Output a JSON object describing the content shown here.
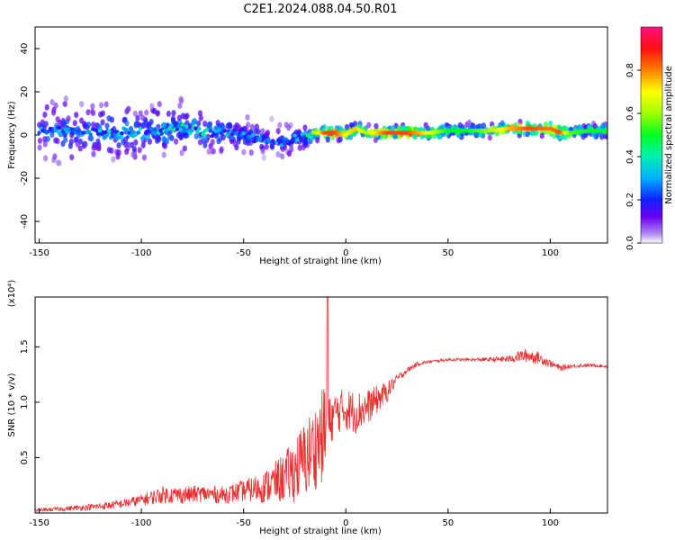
{
  "figure": {
    "title": "C2E1.2024.088.04.50.R01"
  },
  "colors": {
    "snr_line": "#e83030",
    "spectral_low": "#3c00e8",
    "spectral_mid": "#00e0e0",
    "spectral_peak": "#e02020",
    "axis": "#000000"
  },
  "chart_data": [
    {
      "type": "heatmap",
      "xlabel": "Height of straight line (km)",
      "ylabel": "Frequency (Hz)",
      "xlim": [
        -152,
        128
      ],
      "ylim": [
        -50,
        50
      ],
      "xticks": [
        -150,
        -100,
        -50,
        0,
        50,
        100
      ],
      "yticks": [
        -40,
        -20,
        0,
        20,
        40
      ],
      "colorbar": {
        "label": "Normalized spectral amplitude",
        "range": [
          0.0,
          1.0
        ],
        "ticks": [
          "0.0",
          "0.2",
          "0.4",
          "0.6",
          "0.8"
        ],
        "colormap": "rainbow (white/purple → blue → cyan → green → yellow → red → magenta)"
      },
      "ridge": {
        "x": [
          -150,
          -140,
          -130,
          -120,
          -110,
          -100,
          -90,
          -80,
          -70,
          -60,
          -50,
          -40,
          -30,
          -20,
          -15,
          -10,
          -5,
          0,
          5,
          10,
          20,
          30,
          40,
          50,
          60,
          70,
          80,
          90,
          100,
          105,
          110,
          120,
          128
        ],
        "peak_frequency_hz": [
          2,
          2,
          1,
          1,
          1,
          1,
          2,
          3,
          2,
          1,
          0,
          -2,
          -3,
          -1,
          1,
          1,
          1,
          0,
          3,
          1,
          1,
          1,
          1,
          2,
          2,
          2,
          3,
          3,
          3,
          1,
          1,
          2,
          2
        ],
        "amplitude": [
          0.25,
          0.25,
          0.25,
          0.25,
          0.28,
          0.25,
          0.28,
          0.3,
          0.3,
          0.25,
          0.22,
          0.2,
          0.22,
          0.25,
          0.6,
          0.85,
          0.85,
          0.7,
          0.75,
          0.6,
          0.85,
          0.85,
          0.7,
          0.5,
          0.5,
          0.6,
          0.75,
          0.85,
          0.8,
          0.85,
          0.55,
          0.5,
          0.5
        ],
        "spread_hz": [
          14,
          14,
          14,
          13,
          12,
          12,
          12,
          12,
          11,
          9,
          8,
          8,
          8,
          6,
          3,
          3,
          3,
          3,
          3,
          3,
          3,
          3,
          3,
          3,
          3,
          3,
          3,
          3,
          3,
          3,
          3,
          3,
          3
        ]
      }
    },
    {
      "type": "line",
      "xlabel": "Height of straight line (km)",
      "ylabel": "SNR (10 * v/v)",
      "y_multiplier": "(x10⁴)",
      "xlim": [
        -152,
        128
      ],
      "ylim": [
        0,
        1.95
      ],
      "xticks": [
        -150,
        -100,
        -50,
        0,
        50,
        100
      ],
      "yticks": [
        "0.5",
        "1.0",
        "1.5"
      ],
      "series": [
        {
          "x": [
            -152,
            -140,
            -130,
            -120,
            -110,
            -100,
            -90,
            -80,
            -70,
            -60,
            -50,
            -40,
            -30,
            -25,
            -20,
            -15,
            -12,
            -10,
            -9,
            -8,
            -5,
            0,
            5,
            10,
            15,
            20,
            25,
            30,
            35,
            40,
            50,
            60,
            70,
            80,
            85,
            90,
            95,
            100,
            105,
            110,
            120,
            128
          ],
          "mean": [
            0.02,
            0.03,
            0.04,
            0.05,
            0.07,
            0.1,
            0.14,
            0.14,
            0.15,
            0.14,
            0.17,
            0.19,
            0.25,
            0.3,
            0.38,
            0.48,
            0.55,
            0.6,
            0.6,
            0.75,
            0.85,
            0.88,
            0.85,
            0.9,
            0.98,
            1.06,
            1.2,
            1.28,
            1.34,
            1.36,
            1.38,
            1.38,
            1.38,
            1.38,
            1.4,
            1.4,
            1.38,
            1.34,
            1.3,
            1.32,
            1.33,
            1.32
          ],
          "noise": [
            0.02,
            0.03,
            0.04,
            0.05,
            0.06,
            0.08,
            0.12,
            0.12,
            0.12,
            0.12,
            0.15,
            0.22,
            0.35,
            0.45,
            0.55,
            0.6,
            0.65,
            0.7,
            0.7,
            0.35,
            0.3,
            0.3,
            0.3,
            0.25,
            0.2,
            0.15,
            0.06,
            0.04,
            0.03,
            0.02,
            0.02,
            0.02,
            0.03,
            0.05,
            0.08,
            0.1,
            0.08,
            0.05,
            0.04,
            0.03,
            0.02,
            0.02
          ]
        }
      ],
      "annotations": [
        {
          "x": -9,
          "y": 1.95,
          "note": "spike to top of axis"
        }
      ]
    }
  ]
}
